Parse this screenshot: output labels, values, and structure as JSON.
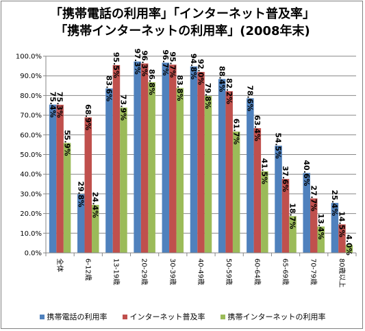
{
  "chart_data": {
    "type": "bar",
    "title_lines": [
      "「携帯電話の利用率」「インターネット普及率」",
      "「携帯インターネットの利用率」(2008年末)"
    ],
    "categories": [
      "全体",
      "6-12歳",
      "13-19歳",
      "20-29歳",
      "30-39歳",
      "40-49歳",
      "50-59歳",
      "60-64歳",
      "65-69歳",
      "70-79歳",
      "80歳以上"
    ],
    "series": [
      {
        "name": "携帯電話の利用率",
        "color": "#4f81bd",
        "values": [
          75.4,
          29.8,
          83.6,
          97.3,
          96.7,
          94.8,
          88.4,
          78.6,
          54.5,
          40.6,
          25.4
        ],
        "labels": [
          "75.4%",
          "29.8%",
          "83.6%",
          "97.3%",
          "96.7%",
          "94.8%",
          "88.4%",
          "78.6%",
          "54.5%",
          "40.6%",
          "25.4%"
        ]
      },
      {
        "name": "インターネット普及率",
        "color": "#c0504d",
        "values": [
          75.3,
          68.9,
          95.5,
          96.3,
          95.7,
          92.0,
          82.2,
          63.4,
          37.6,
          27.7,
          14.5
        ],
        "labels": [
          "75.3%",
          "68.9%",
          "95.5%",
          "96.3%",
          "95.7%",
          "92.0%",
          "82.2%",
          "63.4%",
          "37.6%",
          "27.7%",
          "14.5%"
        ]
      },
      {
        "name": "携帯インターネットの利用率",
        "color": "#9bbb59",
        "values": [
          55.9,
          24.4,
          73.9,
          86.8,
          83.8,
          79.8,
          61.7,
          41.5,
          18.7,
          13.4,
          4.0
        ],
        "labels": [
          "55.9%",
          "24.4%",
          "73.9%",
          "86.8%",
          "83.8%",
          "79.8%",
          "61.7%",
          "41.5%",
          "18.7%",
          "13.4%",
          "4.0%"
        ]
      }
    ],
    "ylim": [
      0,
      100
    ],
    "yticks": [
      "0.0%",
      "10.0%",
      "20.0%",
      "30.0%",
      "40.0%",
      "50.0%",
      "60.0%",
      "70.0%",
      "80.0%",
      "90.0%",
      "100.0%"
    ],
    "grid": true,
    "legend_position": "bottom"
  }
}
